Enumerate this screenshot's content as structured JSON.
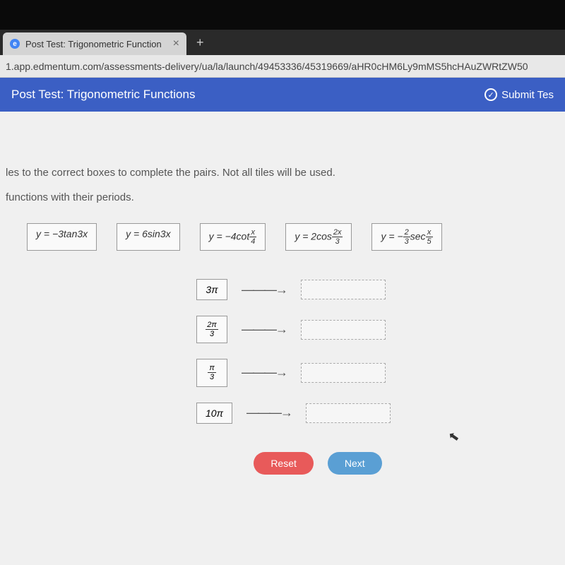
{
  "browser": {
    "tab_title": "Post Test: Trigonometric Function",
    "tab_favicon_letter": "e",
    "new_tab_symbol": "+",
    "tab_close_symbol": "×",
    "url": "1.app.edmentum.com/assessments-delivery/ua/la/launch/49453336/45319669/aHR0cHM6Ly9mMS5hcHAuZWRtZW50"
  },
  "header": {
    "title": "Post Test: Trigonometric Functions",
    "submit_label": "Submit Tes",
    "check_symbol": "✓"
  },
  "instructions": {
    "line1": "les to the correct boxes to complete the pairs. Not all tiles will be used.",
    "line2": "functions with their periods."
  },
  "tiles": [
    {
      "prefix": "y = −3tan3",
      "var": "x"
    },
    {
      "prefix": "y = 6sin3",
      "var": "x"
    },
    {
      "prefix": "y = −4cot",
      "frac_num": "x",
      "frac_den": "4"
    },
    {
      "prefix": "y = 2cos",
      "frac_num": "2x",
      "frac_den": "3"
    },
    {
      "pre": "y = −",
      "frac1_num": "2",
      "frac1_den": "3",
      "mid": "sec",
      "frac2_num": "x",
      "frac2_den": "5"
    }
  ],
  "periods": [
    {
      "text": "3π"
    },
    {
      "frac_num": "2π",
      "frac_den": "3"
    },
    {
      "frac_num": "π",
      "frac_den": "3"
    },
    {
      "text": "10π"
    }
  ],
  "buttons": {
    "reset": "Reset",
    "next": "Next"
  },
  "arrow_symbol": "———→",
  "cursor_symbol": "↖",
  "colors": {
    "header_bg": "#3b5fc4",
    "reset_bg": "#e85a5a",
    "next_bg": "#5a9fd4"
  }
}
